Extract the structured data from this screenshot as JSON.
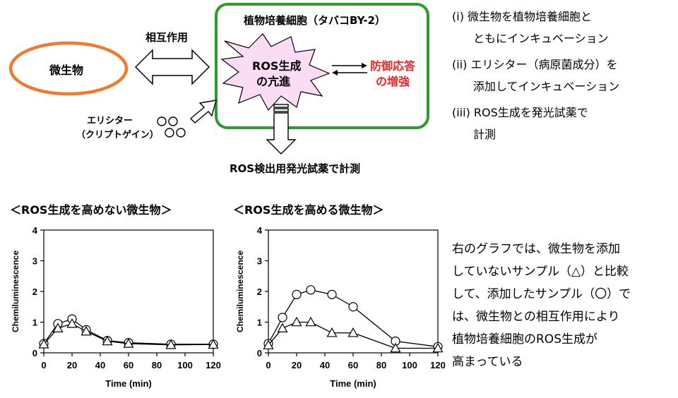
{
  "diagram": {
    "microbe_label": "微生物",
    "interaction_label": "相互作用",
    "cell_title": "植物培養細胞（タバコBY-2）",
    "ros_line1": "ROS生成",
    "ros_line2": "の亢進",
    "defense_line1": "防御応答",
    "defense_line2": "の増強",
    "elicitor_line1": "エリシター",
    "elicitor_line2": "（クリプトゲイン）",
    "measure_label": "ROS検出用発光試薬で計測",
    "colors": {
      "ellipse_stroke": "#f07a30",
      "cell_stroke": "#2e9a2e",
      "burst_fill": "#fadcf4",
      "defense_text": "#e8262a"
    }
  },
  "steps": {
    "s1a": "(i) 微生物を植物培養細胞と",
    "s1b": "ともにインキュベーション",
    "s2a": "(ii) エリシター（病原菌成分）を",
    "s2b": "添加してインキュベーション",
    "s3a": "(iii) ROS生成を発光試薬で",
    "s3b": "計測"
  },
  "chart_data": [
    {
      "type": "line",
      "title": "＜ROS生成を高めない微生物＞",
      "xlabel": "Time (min)",
      "ylabel": "Chemiluminescence",
      "xlim": [
        0,
        120
      ],
      "ylim": [
        0,
        4
      ],
      "xticks": [
        0,
        20,
        40,
        60,
        80,
        100,
        120
      ],
      "yticks": [
        0,
        1,
        2,
        3,
        4
      ],
      "grid": false,
      "series": [
        {
          "marker": "circle",
          "x": [
            0,
            10,
            20,
            30,
            45,
            60,
            90,
            120
          ],
          "y": [
            0.3,
            0.95,
            1.1,
            0.75,
            0.4,
            0.33,
            0.28,
            0.28
          ]
        },
        {
          "marker": "triangle",
          "x": [
            0,
            10,
            20,
            30,
            45,
            60,
            90,
            120
          ],
          "y": [
            0.28,
            0.8,
            0.95,
            0.7,
            0.38,
            0.3,
            0.26,
            0.27
          ]
        }
      ]
    },
    {
      "type": "line",
      "title": "＜ROS生成を高める微生物＞",
      "xlabel": "Time (min)",
      "ylabel": "Chemiluminescence",
      "xlim": [
        0,
        120
      ],
      "ylim": [
        0,
        4
      ],
      "xticks": [
        0,
        20,
        40,
        60,
        80,
        100,
        120
      ],
      "yticks": [
        0,
        1,
        2,
        3,
        4
      ],
      "grid": false,
      "series": [
        {
          "marker": "circle",
          "x": [
            0,
            10,
            20,
            30,
            45,
            60,
            90,
            120
          ],
          "y": [
            0.3,
            1.15,
            1.9,
            2.05,
            1.9,
            1.5,
            0.38,
            0.2
          ]
        },
        {
          "marker": "triangle",
          "x": [
            0,
            10,
            20,
            30,
            45,
            60,
            90,
            120
          ],
          "y": [
            0.25,
            0.8,
            1.0,
            1.0,
            0.65,
            0.65,
            0.15,
            0.15
          ]
        }
      ]
    }
  ],
  "note": {
    "l1": "右のグラフでは、微生物を添加",
    "l2": "していないサンプル（△）と比較",
    "l3": "して、添加したサンプル（〇）で",
    "l4": "は、微生物との相互作用により",
    "l5": "植物培養細胞のROS生成が",
    "l6": "高まっている"
  }
}
